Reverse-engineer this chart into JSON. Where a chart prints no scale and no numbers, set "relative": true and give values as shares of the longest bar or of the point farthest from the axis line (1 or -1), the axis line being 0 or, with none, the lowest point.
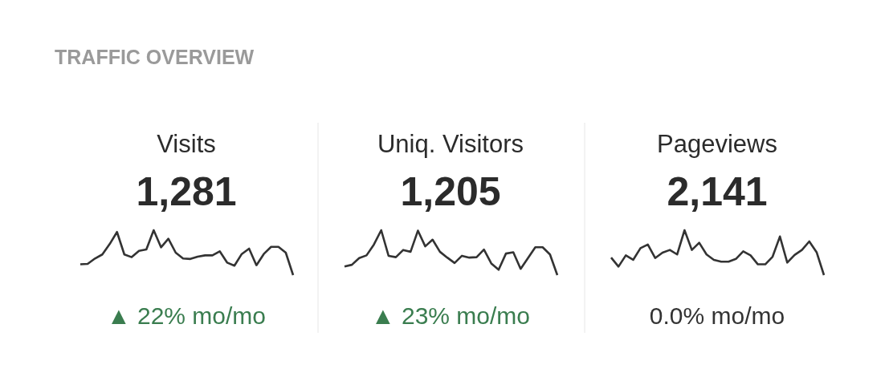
{
  "chart_data": [
    {
      "type": "other",
      "title": "TRAFFIC OVERVIEW"
    },
    {
      "type": "line",
      "title": "Visits",
      "subtitle": "1,281",
      "annotations": [
        "▲ 22% mo/mo"
      ],
      "relative": true,
      "categories": [
        null,
        null,
        null,
        null,
        null,
        null,
        null,
        null,
        null,
        null,
        null,
        null,
        null,
        null,
        null,
        null,
        null,
        null,
        null,
        null,
        null,
        null,
        null,
        null,
        null,
        null,
        null,
        null,
        null,
        null
      ],
      "series": [
        {
          "color": "#333333",
          "values": [
            0.24,
            0.25,
            0.37,
            0.46,
            0.69,
            0.96,
            0.46,
            0.4,
            0.54,
            0.57,
            1,
            0.62,
            0.81,
            0.5,
            0.37,
            0.36,
            0.41,
            0.44,
            0.44,
            0.53,
            0.28,
            0.21,
            0.47,
            0.59,
            0.22,
            0.47,
            0.63,
            0.63,
            0.5,
            0
          ]
        }
      ]
    },
    {
      "type": "line",
      "title": "Uniq. Visitors",
      "subtitle": "1,205",
      "annotations": [
        "▲ 23% mo/mo"
      ],
      "relative": true,
      "categories": [
        null,
        null,
        null,
        null,
        null,
        null,
        null,
        null,
        null,
        null,
        null,
        null,
        null,
        null,
        null,
        null,
        null,
        null,
        null,
        null,
        null,
        null,
        null,
        null,
        null,
        null,
        null,
        null,
        null,
        null
      ],
      "series": [
        {
          "color": "#333333",
          "values": [
            0.19,
            0.23,
            0.38,
            0.44,
            0.68,
            1,
            0.43,
            0.4,
            0.56,
            0.52,
            0.99,
            0.64,
            0.79,
            0.52,
            0.39,
            0.27,
            0.43,
            0.39,
            0.4,
            0.57,
            0.26,
            0.12,
            0.48,
            0.51,
            0.14,
            0.38,
            0.62,
            0.62,
            0.46,
            0
          ]
        }
      ]
    },
    {
      "type": "line",
      "title": "Pageviews",
      "subtitle": "2,141",
      "annotations": [
        "0.0% mo/mo"
      ],
      "relative": true,
      "categories": [
        null,
        null,
        null,
        null,
        null,
        null,
        null,
        null,
        null,
        null,
        null,
        null,
        null,
        null,
        null,
        null,
        null,
        null,
        null,
        null,
        null,
        null,
        null,
        null,
        null,
        null,
        null,
        null,
        null,
        null
      ],
      "series": [
        {
          "color": "#333333",
          "values": [
            0.39,
            0.19,
            0.44,
            0.34,
            0.6,
            0.68,
            0.38,
            0.5,
            0.56,
            0.46,
            1,
            0.56,
            0.72,
            0.46,
            0.34,
            0.3,
            0.3,
            0.36,
            0.53,
            0.44,
            0.24,
            0.24,
            0.41,
            0.86,
            0.28,
            0.45,
            0.56,
            0.75,
            0.51,
            0
          ]
        }
      ]
    }
  ]
}
